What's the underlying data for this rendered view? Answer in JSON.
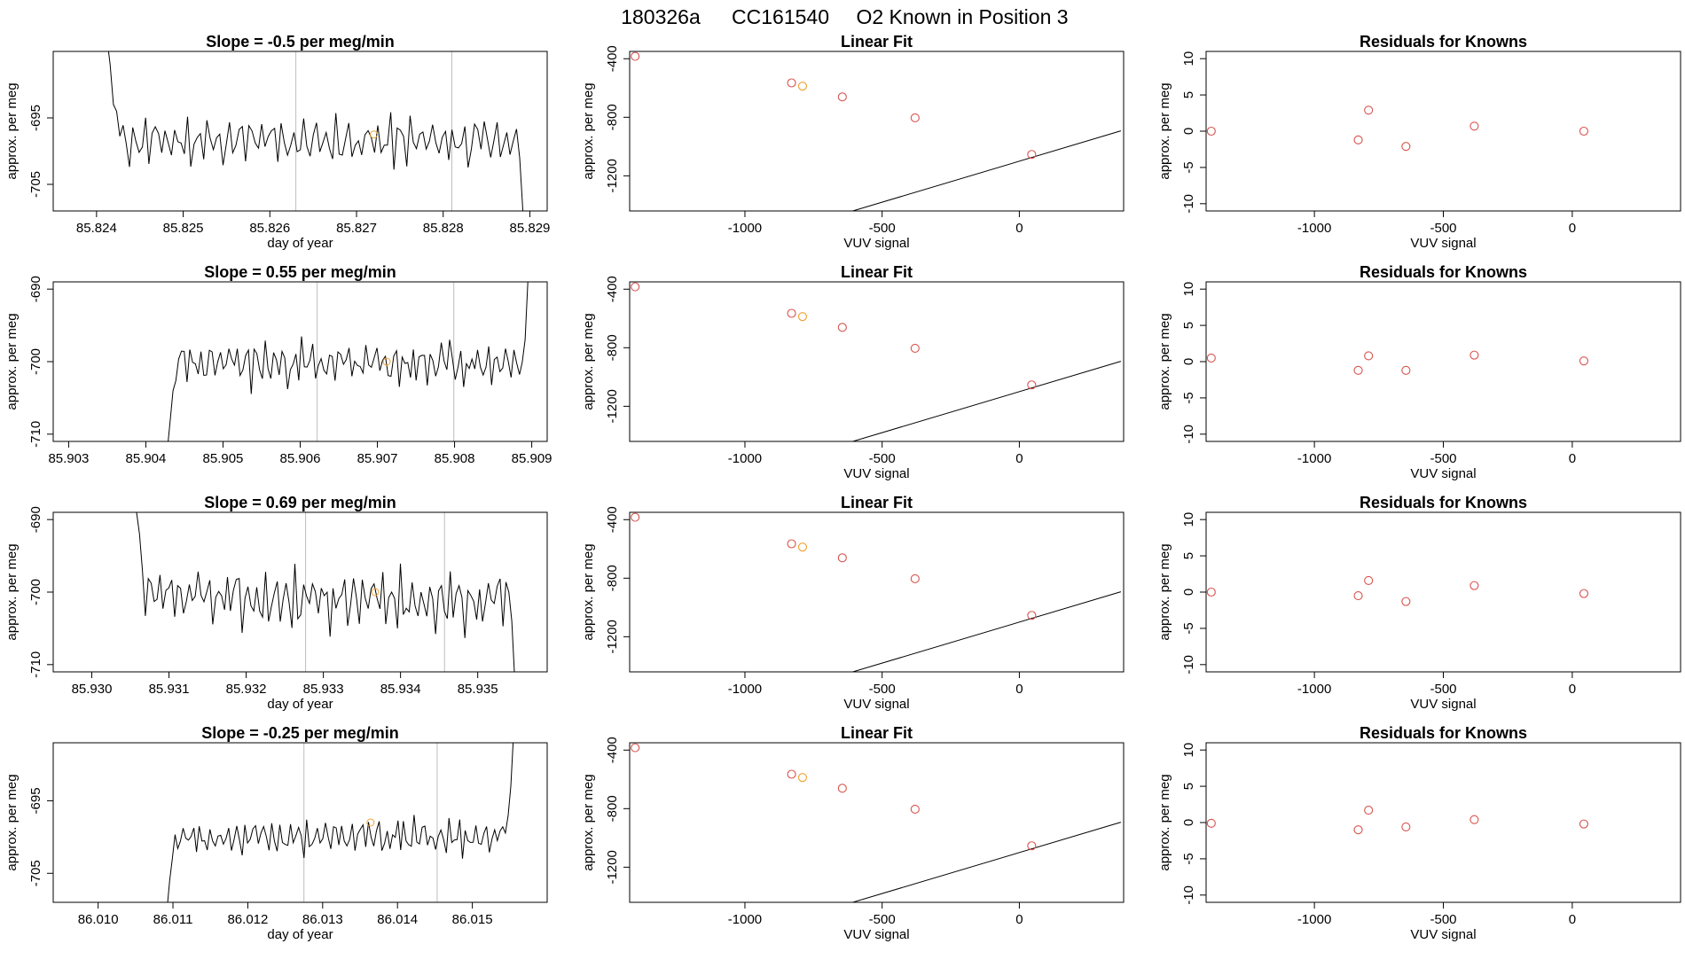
{
  "title": {
    "run": "180326a",
    "cylinder": "CC161540",
    "description": "O2 Known in Position  3"
  },
  "colors": {
    "trace": "#000000",
    "reference_line": "#bebebe",
    "point_red": "#d9534f",
    "point_orange": "#f0a030"
  },
  "chart_data": [
    {
      "type": "line",
      "title": "Slope =  -0.5  per meg/min",
      "xlabel": "day of year",
      "ylabel": "approx. per meg",
      "xlim": [
        85.8235,
        85.8292
      ],
      "ylim": [
        -709,
        -685
      ],
      "xticks": [
        85.824,
        85.825,
        85.826,
        85.827,
        85.828,
        85.829
      ],
      "xtick_labels": [
        "85.824",
        "85.825",
        "85.826",
        "85.827",
        "85.828",
        "85.829"
      ],
      "yticks": [
        -695,
        -705
      ],
      "ytick_labels": [
        "-695",
        "-705"
      ],
      "vlines": [
        85.8263,
        85.8281
      ],
      "marker": {
        "x": 85.8272,
        "y": -697.5
      },
      "trace": {
        "x_start": 85.82412,
        "x_end": 85.82892,
        "lead_in": [
          -683,
          -687,
          -693,
          -694
        ],
        "base": -698.5,
        "amp": 3.6,
        "lead_out": [
          -701,
          -709
        ],
        "seed": 11
      }
    },
    {
      "type": "scatter",
      "title": "Linear Fit",
      "xlabel": "VUV signal",
      "ylabel": "approx. per meg",
      "xlim": [
        -1420,
        380
      ],
      "ylim": [
        -1440,
        -350
      ],
      "xticks": [
        -1000,
        -500,
        0
      ],
      "xtick_labels": [
        "-1000",
        "-500",
        "0"
      ],
      "yticks": [
        -400,
        -800,
        -1200
      ],
      "ytick_labels": [
        "-400",
        "-800",
        "-1200"
      ],
      "fit": {
        "slope": 0.56,
        "intercept": -1100,
        "x_from": -1400,
        "x_to": 370
      },
      "points_x": [
        -1400,
        -830,
        -790,
        -645,
        -380,
        45
      ],
      "points_y": [
        -384,
        -565,
        -587,
        -661,
        -804,
        -1054
      ],
      "point_colors": [
        "red",
        "red",
        "orange",
        "red",
        "red",
        "red"
      ]
    },
    {
      "type": "scatter",
      "title": "Residuals for Knowns",
      "xlabel": "VUV signal",
      "ylabel": "approx. per meg",
      "xlim": [
        -1420,
        420
      ],
      "ylim": [
        -11,
        11
      ],
      "xticks": [
        -1000,
        -500,
        0
      ],
      "xtick_labels": [
        "-1000",
        "-500",
        "0"
      ],
      "yticks": [
        10,
        5,
        0,
        -5,
        -10
      ],
      "ytick_labels": [
        "10",
        "5",
        "0",
        "-5",
        "-10"
      ],
      "points_x": [
        -1400,
        -830,
        -790,
        -645,
        -380,
        45
      ],
      "points_y": [
        0,
        -1.2,
        2.9,
        -2.1,
        0.7,
        0
      ],
      "point_colors": [
        "red",
        "red",
        "red",
        "red",
        "red",
        "red"
      ]
    },
    {
      "type": "line",
      "title": "Slope =  0.55  per meg/min",
      "xlabel": "",
      "ylabel": "approx. per meg",
      "xlim": [
        85.9028,
        85.9092
      ],
      "ylim": [
        -711,
        -689
      ],
      "xticks": [
        85.903,
        85.904,
        85.905,
        85.906,
        85.907,
        85.908,
        85.909
      ],
      "xtick_labels": [
        "85.903",
        "85.904",
        "85.905",
        "85.906",
        "85.907",
        "85.908",
        "85.909"
      ],
      "yticks": [
        -690,
        -700,
        -710
      ],
      "ytick_labels": [
        "-690",
        "-700",
        "-710"
      ],
      "vlines": [
        85.90622,
        85.90799
      ],
      "marker": {
        "x": 85.90712,
        "y": -700
      },
      "trace": {
        "x_start": 85.90428,
        "x_end": 85.90895,
        "lead_in": [
          -712,
          -708,
          -704
        ],
        "base": -700.3,
        "amp": 3.2,
        "lead_out": [
          -697,
          -689
        ],
        "seed": 23
      }
    },
    {
      "type": "scatter",
      "title": "Linear Fit",
      "xlabel": "VUV signal",
      "ylabel": "approx. per meg",
      "xlim": [
        -1420,
        380
      ],
      "ylim": [
        -1440,
        -350
      ],
      "xticks": [
        -1000,
        -500,
        0
      ],
      "xtick_labels": [
        "-1000",
        "-500",
        "0"
      ],
      "yticks": [
        -400,
        -800,
        -1200
      ],
      "ytick_labels": [
        "-400",
        "-800",
        "-1200"
      ],
      "fit": {
        "slope": 0.56,
        "intercept": -1100,
        "x_from": -1400,
        "x_to": 370
      },
      "points_x": [
        -1400,
        -830,
        -790,
        -645,
        -380,
        45
      ],
      "points_y": [
        -384,
        -565,
        -587,
        -661,
        -804,
        -1054
      ],
      "point_colors": [
        "red",
        "red",
        "orange",
        "red",
        "red",
        "red"
      ]
    },
    {
      "type": "scatter",
      "title": "Residuals for Knowns",
      "xlabel": "VUV signal",
      "ylabel": "approx. per meg",
      "xlim": [
        -1420,
        420
      ],
      "ylim": [
        -11,
        11
      ],
      "xticks": [
        -1000,
        -500,
        0
      ],
      "xtick_labels": [
        "-1000",
        "-500",
        "0"
      ],
      "yticks": [
        10,
        5,
        0,
        -5,
        -10
      ],
      "ytick_labels": [
        "10",
        "5",
        "0",
        "-5",
        "-10"
      ],
      "points_x": [
        -1400,
        -830,
        -790,
        -645,
        -380,
        45
      ],
      "points_y": [
        0.5,
        -1.2,
        0.8,
        -1.2,
        0.9,
        0.1
      ],
      "point_colors": [
        "red",
        "red",
        "red",
        "red",
        "red",
        "red"
      ]
    },
    {
      "type": "line",
      "title": "Slope =  0.69  per meg/min",
      "xlabel": "day of year",
      "ylabel": "approx. per meg",
      "xlim": [
        85.9295,
        85.9359
      ],
      "ylim": [
        -711,
        -689
      ],
      "xticks": [
        85.93,
        85.931,
        85.932,
        85.933,
        85.934,
        85.935
      ],
      "xtick_labels": [
        "85.930",
        "85.931",
        "85.932",
        "85.933",
        "85.934",
        "85.935"
      ],
      "yticks": [
        -690,
        -700,
        -710
      ],
      "ytick_labels": [
        "-690",
        "-700",
        "-710"
      ],
      "vlines": [
        85.93277,
        85.93457
      ],
      "marker": {
        "x": 85.93367,
        "y": -700
      },
      "trace": {
        "x_start": 85.93058,
        "x_end": 85.93548,
        "lead_in": [
          -689,
          -692,
          -697
        ],
        "base": -701,
        "amp": 4.4,
        "lead_out": [
          -704,
          -712
        ],
        "seed": 37
      }
    },
    {
      "type": "scatter",
      "title": "Linear Fit",
      "xlabel": "VUV signal",
      "ylabel": "approx. per meg",
      "xlim": [
        -1420,
        380
      ],
      "ylim": [
        -1440,
        -350
      ],
      "xticks": [
        -1000,
        -500,
        0
      ],
      "xtick_labels": [
        "-1000",
        "-500",
        "0"
      ],
      "yticks": [
        -400,
        -800,
        -1200
      ],
      "ytick_labels": [
        "-400",
        "-800",
        "-1200"
      ],
      "fit": {
        "slope": 0.56,
        "intercept": -1100,
        "x_from": -1400,
        "x_to": 370
      },
      "points_x": [
        -1400,
        -830,
        -790,
        -645,
        -380,
        45
      ],
      "points_y": [
        -384,
        -565,
        -587,
        -661,
        -804,
        -1054
      ],
      "point_colors": [
        "red",
        "red",
        "orange",
        "red",
        "red",
        "red"
      ]
    },
    {
      "type": "scatter",
      "title": "Residuals for Knowns",
      "xlabel": "VUV signal",
      "ylabel": "approx. per meg",
      "xlim": [
        -1420,
        420
      ],
      "ylim": [
        -11,
        11
      ],
      "xticks": [
        -1000,
        -500,
        0
      ],
      "xtick_labels": [
        "-1000",
        "-500",
        "0"
      ],
      "yticks": [
        10,
        5,
        0,
        -5,
        -10
      ],
      "ytick_labels": [
        "10",
        "5",
        "0",
        "-5",
        "-10"
      ],
      "points_x": [
        -1400,
        -830,
        -790,
        -645,
        -380,
        45
      ],
      "points_y": [
        0,
        -0.5,
        1.6,
        -1.3,
        0.9,
        -0.2
      ],
      "point_colors": [
        "red",
        "red",
        "red",
        "red",
        "red",
        "red"
      ]
    },
    {
      "type": "line",
      "title": "Slope =  -0.25  per meg/min",
      "xlabel": "day of year",
      "ylabel": "approx. per meg",
      "xlim": [
        86.0094,
        86.016
      ],
      "ylim": [
        -709,
        -687
      ],
      "xticks": [
        86.01,
        86.011,
        86.012,
        86.013,
        86.014,
        86.015
      ],
      "xtick_labels": [
        "86.010",
        "86.011",
        "86.012",
        "86.013",
        "86.014",
        "86.015"
      ],
      "yticks": [
        -695,
        -705
      ],
      "ytick_labels": [
        "-695",
        "-705"
      ],
      "vlines": [
        86.01275,
        86.01453
      ],
      "marker": {
        "x": 86.01364,
        "y": -698
      },
      "trace": {
        "x_start": 86.01092,
        "x_end": 86.01555,
        "lead_in": [
          -710,
          -706,
          -703
        ],
        "base": -700,
        "amp": 2.4,
        "lead_out": [
          -697,
          -693,
          -686
        ],
        "seed": 53
      }
    },
    {
      "type": "scatter",
      "title": "Linear Fit",
      "xlabel": "VUV signal",
      "ylabel": "approx. per meg",
      "xlim": [
        -1420,
        380
      ],
      "ylim": [
        -1440,
        -350
      ],
      "xticks": [
        -1000,
        -500,
        0
      ],
      "xtick_labels": [
        "-1000",
        "-500",
        "0"
      ],
      "yticks": [
        -400,
        -800,
        -1200
      ],
      "ytick_labels": [
        "-400",
        "-800",
        "-1200"
      ],
      "fit": {
        "slope": 0.56,
        "intercept": -1100,
        "x_from": -1400,
        "x_to": 370
      },
      "points_x": [
        -1400,
        -830,
        -790,
        -645,
        -380,
        45
      ],
      "points_y": [
        -384,
        -565,
        -587,
        -661,
        -804,
        -1054
      ],
      "point_colors": [
        "red",
        "red",
        "orange",
        "red",
        "red",
        "red"
      ]
    },
    {
      "type": "scatter",
      "title": "Residuals for Knowns",
      "xlabel": "VUV signal",
      "ylabel": "approx. per meg",
      "xlim": [
        -1420,
        420
      ],
      "ylim": [
        -11,
        11
      ],
      "xticks": [
        -1000,
        -500,
        0
      ],
      "xtick_labels": [
        "-1000",
        "-500",
        "0"
      ],
      "yticks": [
        10,
        5,
        0,
        -5,
        -10
      ],
      "ytick_labels": [
        "10",
        "5",
        "0",
        "-5",
        "-10"
      ],
      "points_x": [
        -1400,
        -830,
        -790,
        -645,
        -380,
        45
      ],
      "points_y": [
        -0.1,
        -1.0,
        1.7,
        -0.6,
        0.4,
        -0.2
      ],
      "point_colors": [
        "red",
        "red",
        "red",
        "red",
        "red",
        "red"
      ]
    }
  ]
}
